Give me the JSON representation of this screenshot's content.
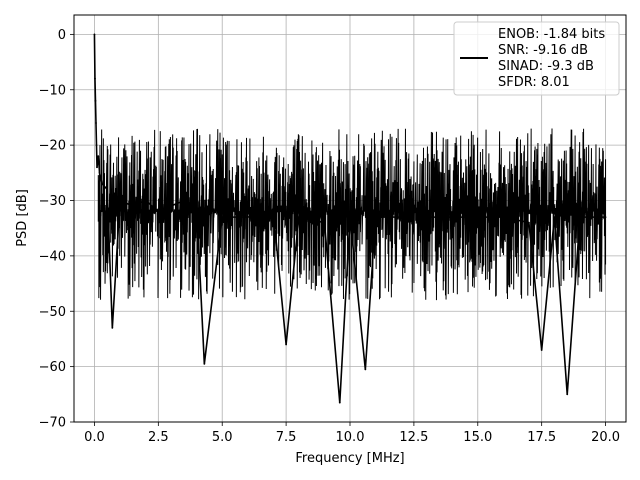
{
  "chart_data": {
    "type": "line",
    "title": "",
    "xlabel": "Frequency [MHz]",
    "ylabel": "PSD [dB]",
    "xlim": [
      -0.8,
      20.8
    ],
    "ylim": [
      -70,
      3.5
    ],
    "xticks": [
      0.0,
      2.5,
      5.0,
      7.5,
      10.0,
      12.5,
      15.0,
      17.5,
      20.0
    ],
    "xtick_labels": [
      "0.0",
      "2.5",
      "5.0",
      "7.5",
      "10.0",
      "12.5",
      "15.0",
      "17.5",
      "20.0"
    ],
    "yticks": [
      0,
      -10,
      -20,
      -30,
      -40,
      -50,
      -60,
      -70
    ],
    "ytick_labels": [
      "0",
      "−10",
      "−20",
      "−30",
      "−40",
      "−50",
      "−60",
      "−70"
    ],
    "grid": true,
    "legend_position": "top-right",
    "line_color": "#000000",
    "legend": {
      "entries": [
        "ENOB: -1.84 bits",
        "SNR: -9.16 dB",
        "SINAD: -9.3 dB",
        "SFDR: 8.01"
      ]
    },
    "series": [
      {
        "x": [
          0.0,
          0.02,
          0.04,
          0.06,
          0.08,
          0.1,
          0.15,
          0.2,
          0.3,
          0.5,
          0.7,
          1.0,
          1.5,
          2.0,
          2.5,
          3.0,
          3.5,
          4.0,
          4.3,
          5.0,
          6.0,
          7.0,
          7.5,
          8.0,
          9.0,
          9.6,
          10.0,
          10.6,
          11.0,
          12.0,
          12.5,
          13.0,
          14.0,
          15.0,
          16.0,
          17.0,
          17.5,
          18.0,
          18.5,
          19.0,
          19.5,
          20.0
        ],
        "y": [
          0.0,
          -8,
          -12,
          -16,
          -20,
          -24,
          -22,
          -25,
          -27,
          -28,
          -53,
          -30,
          -31,
          -30,
          -32,
          -31,
          -30,
          -31,
          -59.5,
          -33,
          -33,
          -32,
          -56,
          -33,
          -34,
          -66.5,
          -33,
          -60.5,
          -33,
          -33,
          -32,
          -33,
          -33,
          -33,
          -33,
          -34,
          -57,
          -33,
          -65,
          -33,
          -33,
          -33
        ],
        "peak_max": -17,
        "trough_min": -48,
        "noise_floor": -32
      }
    ]
  }
}
